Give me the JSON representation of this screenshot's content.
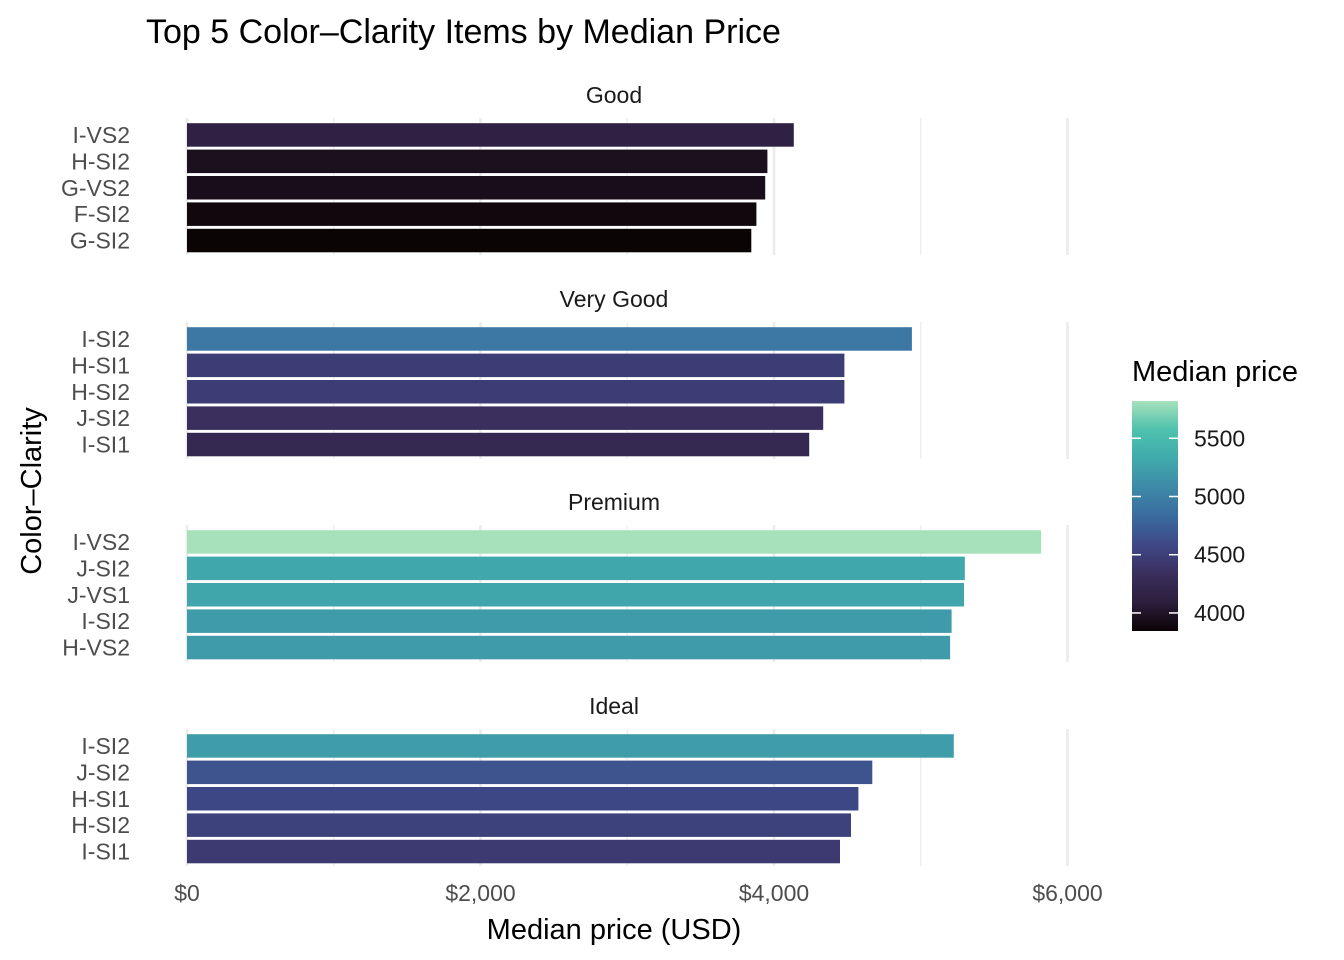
{
  "chart_data": {
    "type": "bar",
    "orientation": "horizontal",
    "title": "Top 5 Color–Clarity Items by Median Price",
    "xlabel": "Median price (USD)",
    "ylabel": "Color–Clarity",
    "xlim": [
      0,
      6500
    ],
    "x_ticks": [
      {
        "value": 0,
        "label": "$0"
      },
      {
        "value": 2000,
        "label": "$2,000"
      },
      {
        "value": 4000,
        "label": "$4,000"
      },
      {
        "value": 6000,
        "label": "$6,000"
      }
    ],
    "grid": true,
    "facets": [
      {
        "name": "Good",
        "categories": [
          "I-VS2",
          "H-SI2",
          "G-VS2",
          "F-SI2",
          "G-SI2"
        ],
        "values": [
          4135,
          3955,
          3940,
          3880,
          3845
        ]
      },
      {
        "name": "Very Good",
        "categories": [
          "I-SI2",
          "H-SI1",
          "H-SI2",
          "J-SI2",
          "I-SI1"
        ],
        "values": [
          4940,
          4480,
          4480,
          4335,
          4240
        ]
      },
      {
        "name": "Premium",
        "categories": [
          "I-VS2",
          "J-SI2",
          "J-VS1",
          "I-SI2",
          "H-VS2"
        ],
        "values": [
          5820,
          5300,
          5295,
          5210,
          5200
        ]
      },
      {
        "name": "Ideal",
        "categories": [
          "I-SI2",
          "J-SI2",
          "H-SI1",
          "H-SI2",
          "I-SI1"
        ],
        "values": [
          5225,
          4670,
          4575,
          4525,
          4450
        ]
      }
    ],
    "legend": {
      "title": "Median price",
      "position": "right",
      "type": "continuous-colorbar",
      "range": [
        3845,
        5820
      ],
      "ticks": [
        4000,
        4500,
        5000,
        5500
      ],
      "colors": [
        "#0b0405",
        "#2c1e3d",
        "#3b2f5e",
        "#3e4887",
        "#3a6b9f",
        "#3e8aa8",
        "#40aaac",
        "#4ec1ad",
        "#a7e1bc"
      ]
    }
  }
}
